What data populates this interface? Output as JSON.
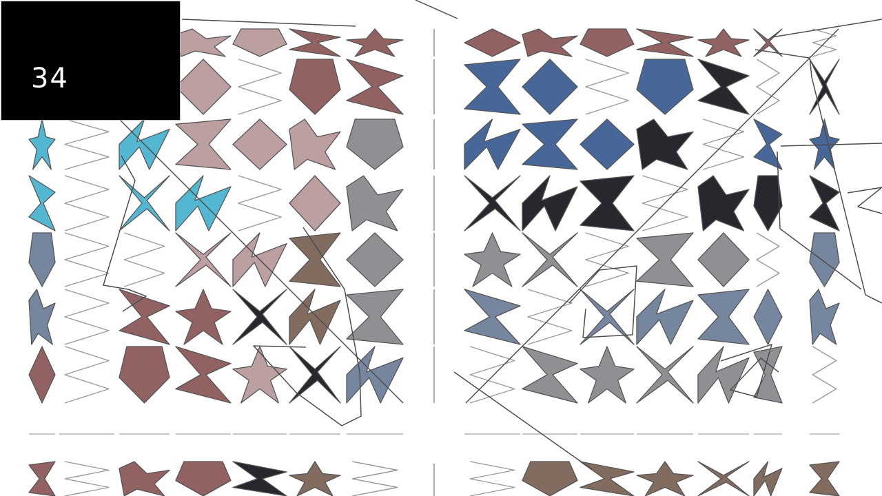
{
  "frame": {
    "counter": "34"
  },
  "scene": {
    "background": "#ffffff",
    "stroke_color": "#555555",
    "stroke_color_light": "#9a9a9a",
    "fill_palette": {
      "cyan": "#4ab3cf",
      "pink_gray": "#b79a9c",
      "red_gray": "#8b5a58",
      "blue": "#3d5f93",
      "dark": "#1b1b22",
      "gray": "#8a8a8e",
      "brown": "#7b6356",
      "steel": "#6e7f99"
    }
  }
}
